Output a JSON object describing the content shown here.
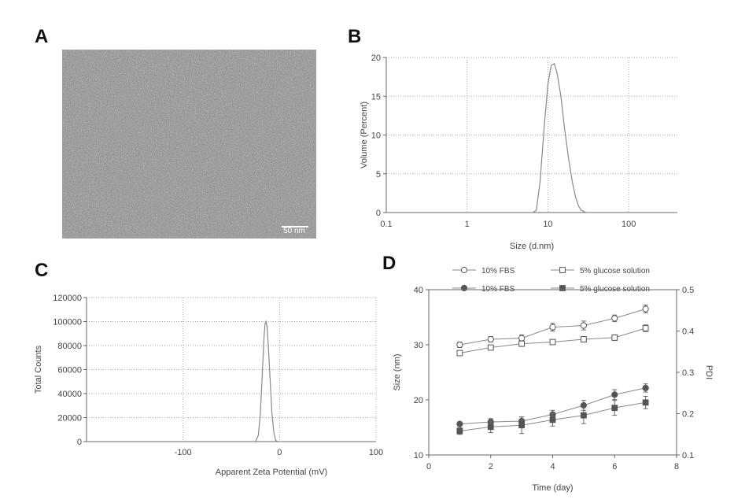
{
  "panels": {
    "A": {
      "label": "A",
      "scale_bar_label": "50 nm"
    },
    "B": {
      "label": "B",
      "chart_data": {
        "type": "line",
        "xscale": "log",
        "xlabel": "Size (d.nm)",
        "ylabel": "Volume (Percent)",
        "xlim": [
          0.1,
          400
        ],
        "ylim": [
          0,
          20
        ],
        "xticks": [
          0.1,
          1,
          10,
          100
        ],
        "xtick_labels": [
          "0.1",
          "1",
          "10",
          "100"
        ],
        "yticks": [
          0,
          5,
          10,
          15,
          20
        ],
        "ytick_labels": [
          "0",
          "5",
          "10",
          "15",
          "20"
        ],
        "grid": true,
        "series": [
          {
            "x": [
              0.1,
              6.5,
              7.2,
              8.0,
              9.0,
              10.0,
              11.0,
              12.0,
              13.0,
              14.5,
              16.0,
              18.0,
              20.0,
              22.0,
              24.0,
              26.0,
              28.0,
              30.0,
              400
            ],
            "y": [
              0,
              0,
              0.3,
              4.0,
              11.0,
              16.5,
              19.0,
              19.2,
              18.0,
              15.0,
              11.0,
              7.0,
              4.0,
              2.0,
              0.8,
              0.3,
              0.1,
              0,
              0
            ],
            "color": "#888888"
          }
        ]
      }
    },
    "C": {
      "label": "C",
      "chart_data": {
        "type": "line",
        "xlabel": "Apparent Zeta Potential (mV)",
        "ylabel": "Total Counts",
        "xlim": [
          -200,
          100
        ],
        "ylim": [
          0,
          120000
        ],
        "xticks": [
          -100,
          0,
          100
        ],
        "xtick_labels": [
          "-100",
          "0",
          "100"
        ],
        "yticks": [
          0,
          20000,
          40000,
          60000,
          80000,
          100000,
          120000
        ],
        "ytick_labels": [
          "0",
          "20000",
          "40000",
          "60000",
          "80000",
          "100000",
          "120000"
        ],
        "grid": true,
        "series": [
          {
            "x": [
              -200,
              -25,
              -22,
              -20,
              -18,
              -16,
              -15,
              -14,
              -13,
              -12,
              -10,
              -8,
              -6,
              -4,
              -2,
              100
            ],
            "y": [
              0,
              0,
              5000,
              22000,
              55000,
              88000,
              98000,
              100000,
              96000,
              85000,
              55000,
              25000,
              8000,
              1000,
              0,
              0
            ],
            "color": "#888888"
          }
        ]
      }
    },
    "D": {
      "label": "D",
      "chart_data": {
        "type": "line",
        "xlabel": "Time (day)",
        "ylabel": "Size (nm)",
        "y2label": "PDI",
        "xlim": [
          0,
          8
        ],
        "ylim": [
          10,
          40
        ],
        "y2lim": [
          0.1,
          0.5
        ],
        "xticks": [
          0,
          2,
          4,
          6,
          8
        ],
        "xtick_labels": [
          "0",
          "2",
          "4",
          "6",
          "8"
        ],
        "yticks": [
          10,
          20,
          30,
          40
        ],
        "ytick_labels": [
          "10",
          "20",
          "30",
          "40"
        ],
        "y2ticks": [
          0.1,
          0.2,
          0.3,
          0.4,
          0.5
        ],
        "y2tick_labels": [
          "0.1",
          "0.2",
          "0.3",
          "0.4",
          "0.5"
        ],
        "grid": false,
        "legend": [
          {
            "text": "10% FBS",
            "marker": "circle-open"
          },
          {
            "text": "5% glucose solution",
            "marker": "square-open"
          },
          {
            "text": "10% FBS",
            "marker": "circle-filled"
          },
          {
            "text": "5% glucose solution",
            "marker": "square-filled"
          }
        ],
        "series": [
          {
            "name": "10% FBS",
            "axis": "left",
            "marker": "circle-open",
            "x": [
              1,
              2,
              3,
              4,
              5,
              6,
              7
            ],
            "y": [
              30.0,
              31.0,
              31.2,
              33.2,
              33.5,
              34.8,
              36.5
            ],
            "err": [
              0.5,
              0.5,
              0.6,
              0.7,
              0.8,
              0.6,
              0.7
            ]
          },
          {
            "name": "5% glucose solution",
            "axis": "left",
            "marker": "square-open",
            "x": [
              1,
              2,
              3,
              4,
              5,
              6,
              7
            ],
            "y": [
              28.5,
              29.5,
              30.2,
              30.5,
              31.0,
              31.3,
              33.0
            ],
            "err": [
              0.4,
              0.4,
              0.5,
              0.4,
              0.5,
              0.5,
              0.6
            ]
          },
          {
            "name": "10% FBS",
            "axis": "right",
            "marker": "circle-filled",
            "x": [
              1,
              2,
              3,
              4,
              5,
              6,
              7
            ],
            "y": [
              0.175,
              0.18,
              0.182,
              0.198,
              0.22,
              0.246,
              0.262
            ],
            "err": [
              0.005,
              0.008,
              0.01,
              0.01,
              0.012,
              0.012,
              0.01
            ]
          },
          {
            "name": "5% glucose solution",
            "axis": "right",
            "marker": "square-filled",
            "x": [
              1,
              2,
              3,
              4,
              5,
              6,
              7
            ],
            "y": [
              0.158,
              0.168,
              0.172,
              0.185,
              0.196,
              0.214,
              0.227
            ],
            "err": [
              0.008,
              0.014,
              0.02,
              0.015,
              0.02,
              0.018,
              0.015
            ]
          }
        ]
      }
    }
  }
}
